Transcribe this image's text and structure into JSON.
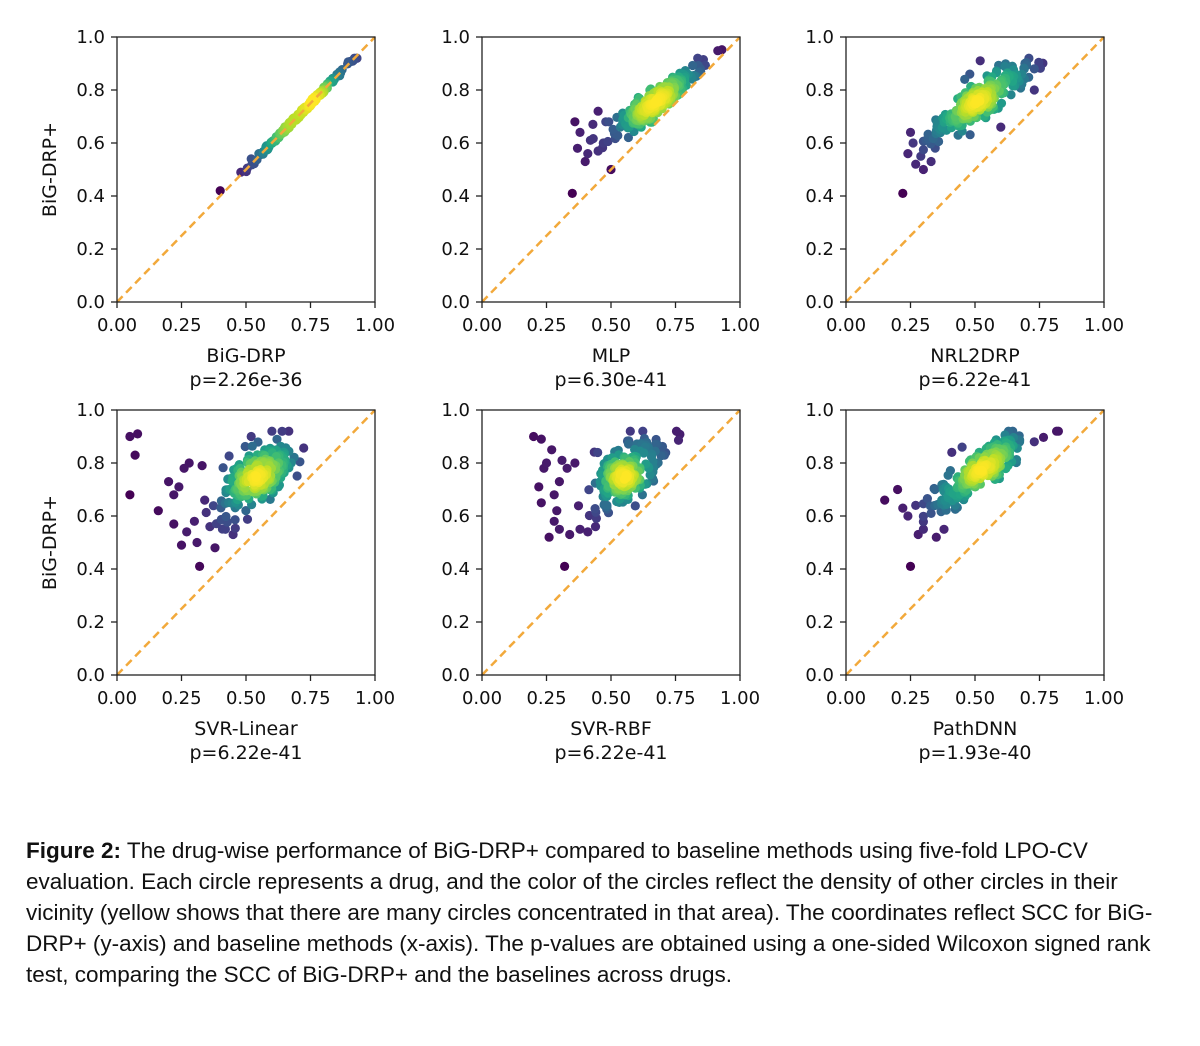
{
  "chart_data": [
    {
      "type": "scatter",
      "panel": "BiG-DRP",
      "xlabel": "BiG-DRP",
      "pvalue": "p=2.26e-36",
      "ylabel": "BiG-DRP+",
      "xlim": [
        0,
        1
      ],
      "ylim": [
        0,
        1
      ],
      "xticks": [
        "0.00",
        "0.25",
        "0.50",
        "0.75",
        "1.00"
      ],
      "yticks": [
        "0.0",
        "0.2",
        "0.4",
        "0.6",
        "0.8",
        "1.0"
      ],
      "reference_line": {
        "from": [
          0,
          0
        ],
        "to": [
          1,
          1
        ],
        "style": "dashed",
        "color": "#f2a93b"
      },
      "cloud": {
        "cx": 0.72,
        "cy": 0.73,
        "sx": 0.09,
        "sy": 0.09,
        "rho": 0.99,
        "n": 200
      },
      "outliers": [
        [
          0.4,
          0.42
        ],
        [
          0.48,
          0.49
        ],
        [
          0.55,
          0.56
        ],
        [
          0.52,
          0.54
        ],
        [
          0.58,
          0.59
        ]
      ]
    },
    {
      "type": "scatter",
      "panel": "MLP",
      "xlabel": "MLP",
      "pvalue": "p=6.30e-41",
      "ylabel": "",
      "xlim": [
        0,
        1
      ],
      "ylim": [
        0,
        1
      ],
      "xticks": [
        "0.00",
        "0.25",
        "0.50",
        "0.75",
        "1.00"
      ],
      "yticks": [
        "0.0",
        "0.2",
        "0.4",
        "0.6",
        "0.8",
        "1.0"
      ],
      "reference_line": {
        "from": [
          0,
          0
        ],
        "to": [
          1,
          1
        ],
        "style": "dashed",
        "color": "#f2a93b"
      },
      "cloud": {
        "cx": 0.68,
        "cy": 0.76,
        "sx": 0.09,
        "sy": 0.07,
        "rho": 0.9,
        "n": 220
      },
      "outliers": [
        [
          0.35,
          0.41
        ],
        [
          0.37,
          0.58
        ],
        [
          0.38,
          0.64
        ],
        [
          0.4,
          0.53
        ],
        [
          0.42,
          0.61
        ],
        [
          0.45,
          0.57
        ],
        [
          0.47,
          0.6
        ],
        [
          0.48,
          0.68
        ],
        [
          0.36,
          0.68
        ],
        [
          0.45,
          0.72
        ],
        [
          0.5,
          0.5
        ],
        [
          0.41,
          0.56
        ],
        [
          0.43,
          0.67
        ]
      ]
    },
    {
      "type": "scatter",
      "panel": "NRL2DRP",
      "xlabel": "NRL2DRP",
      "pvalue": "p=6.22e-41",
      "ylabel": "",
      "xlim": [
        0,
        1
      ],
      "ylim": [
        0,
        1
      ],
      "xticks": [
        "0.00",
        "0.25",
        "0.50",
        "0.75",
        "1.00"
      ],
      "yticks": [
        "0.0",
        "0.2",
        "0.4",
        "0.6",
        "0.8",
        "1.0"
      ],
      "reference_line": {
        "from": [
          0,
          0
        ],
        "to": [
          1,
          1
        ],
        "style": "dashed",
        "color": "#f2a93b"
      },
      "cloud": {
        "cx": 0.52,
        "cy": 0.76,
        "sx": 0.09,
        "sy": 0.07,
        "rho": 0.85,
        "n": 220
      },
      "outliers": [
        [
          0.22,
          0.41
        ],
        [
          0.27,
          0.52
        ],
        [
          0.24,
          0.56
        ],
        [
          0.26,
          0.6
        ],
        [
          0.3,
          0.5
        ],
        [
          0.25,
          0.64
        ],
        [
          0.29,
          0.55
        ],
        [
          0.33,
          0.53
        ],
        [
          0.6,
          0.66
        ],
        [
          0.73,
          0.8
        ],
        [
          0.48,
          0.86
        ],
        [
          0.46,
          0.84
        ],
        [
          0.52,
          0.91
        ]
      ]
    },
    {
      "type": "scatter",
      "panel": "SVR-Linear",
      "xlabel": "SVR-Linear",
      "pvalue": "p=6.22e-41",
      "ylabel": "BiG-DRP+",
      "xlim": [
        0,
        1
      ],
      "ylim": [
        0,
        1
      ],
      "xticks": [
        "0.00",
        "0.25",
        "0.50",
        "0.75",
        "1.00"
      ],
      "yticks": [
        "0.0",
        "0.2",
        "0.4",
        "0.6",
        "0.8",
        "1.0"
      ],
      "reference_line": {
        "from": [
          0,
          0
        ],
        "to": [
          1,
          1
        ],
        "style": "dashed",
        "color": "#f2a93b"
      },
      "cloud": {
        "cx": 0.55,
        "cy": 0.76,
        "sx": 0.07,
        "sy": 0.07,
        "rho": 0.55,
        "n": 220
      },
      "outliers": [
        [
          0.05,
          0.9
        ],
        [
          0.08,
          0.91
        ],
        [
          0.07,
          0.83
        ],
        [
          0.05,
          0.68
        ],
        [
          0.16,
          0.62
        ],
        [
          0.25,
          0.49
        ],
        [
          0.32,
          0.41
        ],
        [
          0.22,
          0.57
        ],
        [
          0.27,
          0.54
        ],
        [
          0.3,
          0.58
        ],
        [
          0.28,
          0.8
        ],
        [
          0.26,
          0.78
        ],
        [
          0.24,
          0.71
        ],
        [
          0.22,
          0.68
        ],
        [
          0.33,
          0.79
        ],
        [
          0.31,
          0.5
        ],
        [
          0.38,
          0.48
        ],
        [
          0.36,
          0.56
        ],
        [
          0.42,
          0.55
        ],
        [
          0.45,
          0.53
        ],
        [
          0.2,
          0.73
        ],
        [
          0.34,
          0.66
        ]
      ]
    },
    {
      "type": "scatter",
      "panel": "SVR-RBF",
      "xlabel": "SVR-RBF",
      "pvalue": "p=6.22e-41",
      "ylabel": "",
      "xlim": [
        0,
        1
      ],
      "ylim": [
        0,
        1
      ],
      "xticks": [
        "0.00",
        "0.25",
        "0.50",
        "0.75",
        "1.00"
      ],
      "yticks": [
        "0.0",
        "0.2",
        "0.4",
        "0.6",
        "0.8",
        "1.0"
      ],
      "reference_line": {
        "from": [
          0,
          0
        ],
        "to": [
          1,
          1
        ],
        "style": "dashed",
        "color": "#f2a93b"
      },
      "cloud": {
        "cx": 0.56,
        "cy": 0.76,
        "sx": 0.07,
        "sy": 0.07,
        "rho": 0.55,
        "n": 220
      },
      "outliers": [
        [
          0.2,
          0.9
        ],
        [
          0.23,
          0.89
        ],
        [
          0.27,
          0.85
        ],
        [
          0.25,
          0.8
        ],
        [
          0.24,
          0.78
        ],
        [
          0.22,
          0.71
        ],
        [
          0.23,
          0.65
        ],
        [
          0.28,
          0.68
        ],
        [
          0.3,
          0.73
        ],
        [
          0.32,
          0.41
        ],
        [
          0.26,
          0.52
        ],
        [
          0.3,
          0.55
        ],
        [
          0.34,
          0.53
        ],
        [
          0.38,
          0.55
        ],
        [
          0.29,
          0.62
        ],
        [
          0.33,
          0.78
        ],
        [
          0.36,
          0.8
        ],
        [
          0.41,
          0.54
        ],
        [
          0.44,
          0.56
        ],
        [
          0.31,
          0.81
        ],
        [
          0.28,
          0.58
        ]
      ]
    },
    {
      "type": "scatter",
      "panel": "PathDNN",
      "xlabel": "PathDNN",
      "pvalue": "p=1.93e-40",
      "ylabel": "",
      "xlim": [
        0,
        1
      ],
      "ylim": [
        0,
        1
      ],
      "xticks": [
        "0.00",
        "0.25",
        "0.50",
        "0.75",
        "1.00"
      ],
      "yticks": [
        "0.0",
        "0.2",
        "0.4",
        "0.6",
        "0.8",
        "1.0"
      ],
      "reference_line": {
        "from": [
          0,
          0
        ],
        "to": [
          1,
          1
        ],
        "style": "dashed",
        "color": "#f2a93b"
      },
      "cloud": {
        "cx": 0.52,
        "cy": 0.77,
        "sx": 0.09,
        "sy": 0.07,
        "rho": 0.85,
        "n": 220
      },
      "outliers": [
        [
          0.15,
          0.66
        ],
        [
          0.2,
          0.7
        ],
        [
          0.22,
          0.63
        ],
        [
          0.25,
          0.41
        ],
        [
          0.27,
          0.64
        ],
        [
          0.3,
          0.55
        ],
        [
          0.33,
          0.61
        ],
        [
          0.28,
          0.53
        ],
        [
          0.35,
          0.52
        ],
        [
          0.38,
          0.55
        ],
        [
          0.24,
          0.6
        ],
        [
          0.41,
          0.84
        ],
        [
          0.45,
          0.86
        ]
      ]
    }
  ],
  "caption": {
    "label": "Figure 2:",
    "text": " The drug-wise performance of BiG-DRP+ compared to baseline methods using five-fold LPO-CV evaluation. Each circle represents a drug, and the color of the circles reflect the density of other circles in their vicinity (yellow shows that there are many circles concentrated in that area). The coordinates reflect SCC for BiG-DRP+ (y-axis) and baseline methods (x-axis). The p-values are obtained using a one-sided Wilcoxon signed rank test, comparing the SCC of BiG-DRP+ and the baselines across drugs."
  }
}
